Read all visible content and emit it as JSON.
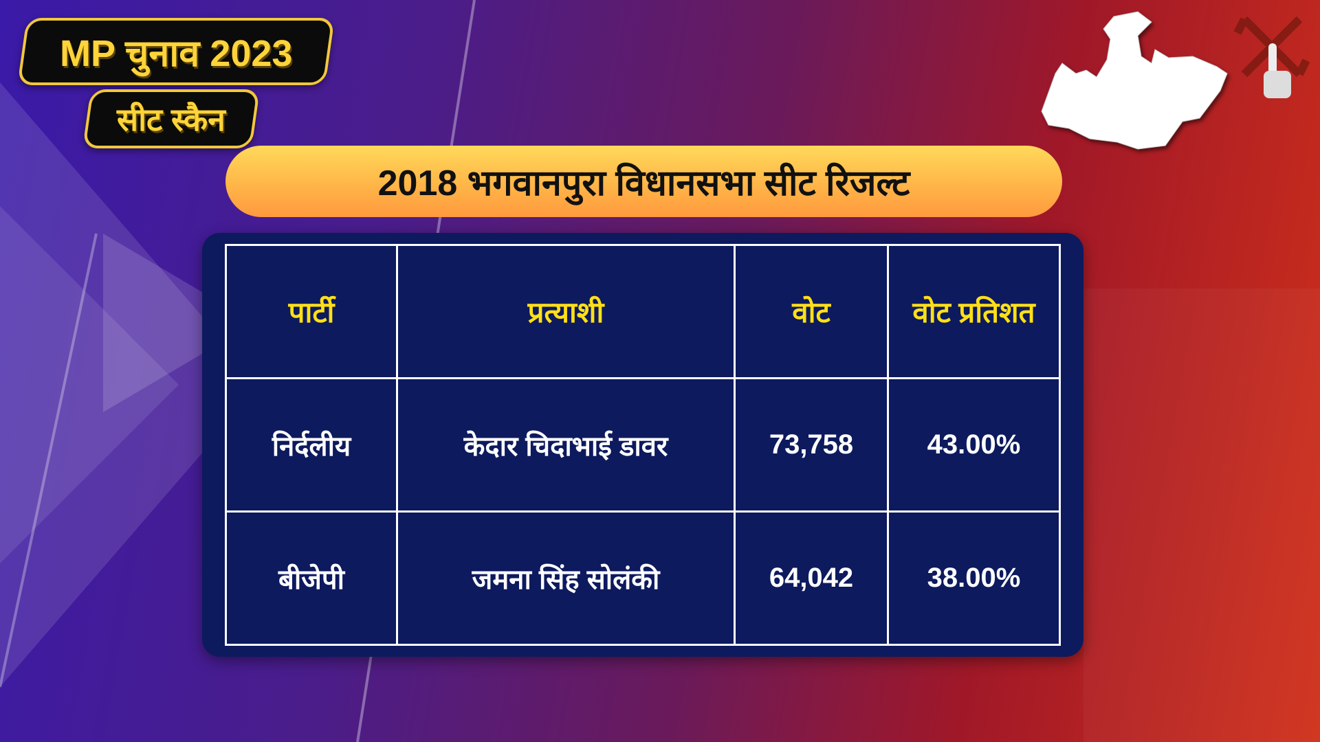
{
  "header": {
    "badge_main": "MP चुनाव 2023",
    "badge_sub": "सीट स्कैन"
  },
  "title": "2018 भगवानपुरा विधानसभा सीट रिजल्ट",
  "icons": {
    "map": "madhya-pradesh-map-icon",
    "vote": "swastik-voting-finger-icon"
  },
  "table": {
    "headers": [
      "पार्टी",
      "प्रत्याशी",
      "वोट",
      "वोट प्रतिशत"
    ],
    "rows": [
      [
        "निर्दलीय",
        "केदार चिदाभाई डावर",
        "73,758",
        "43.00%"
      ],
      [
        "बीजेपी",
        "जमना सिंह सोलंकी",
        "64,042",
        "38.00%"
      ]
    ]
  },
  "colors": {
    "header_text": "#ffe017",
    "panel": "#0d1a5e",
    "badge_text": "#ffd43a"
  }
}
